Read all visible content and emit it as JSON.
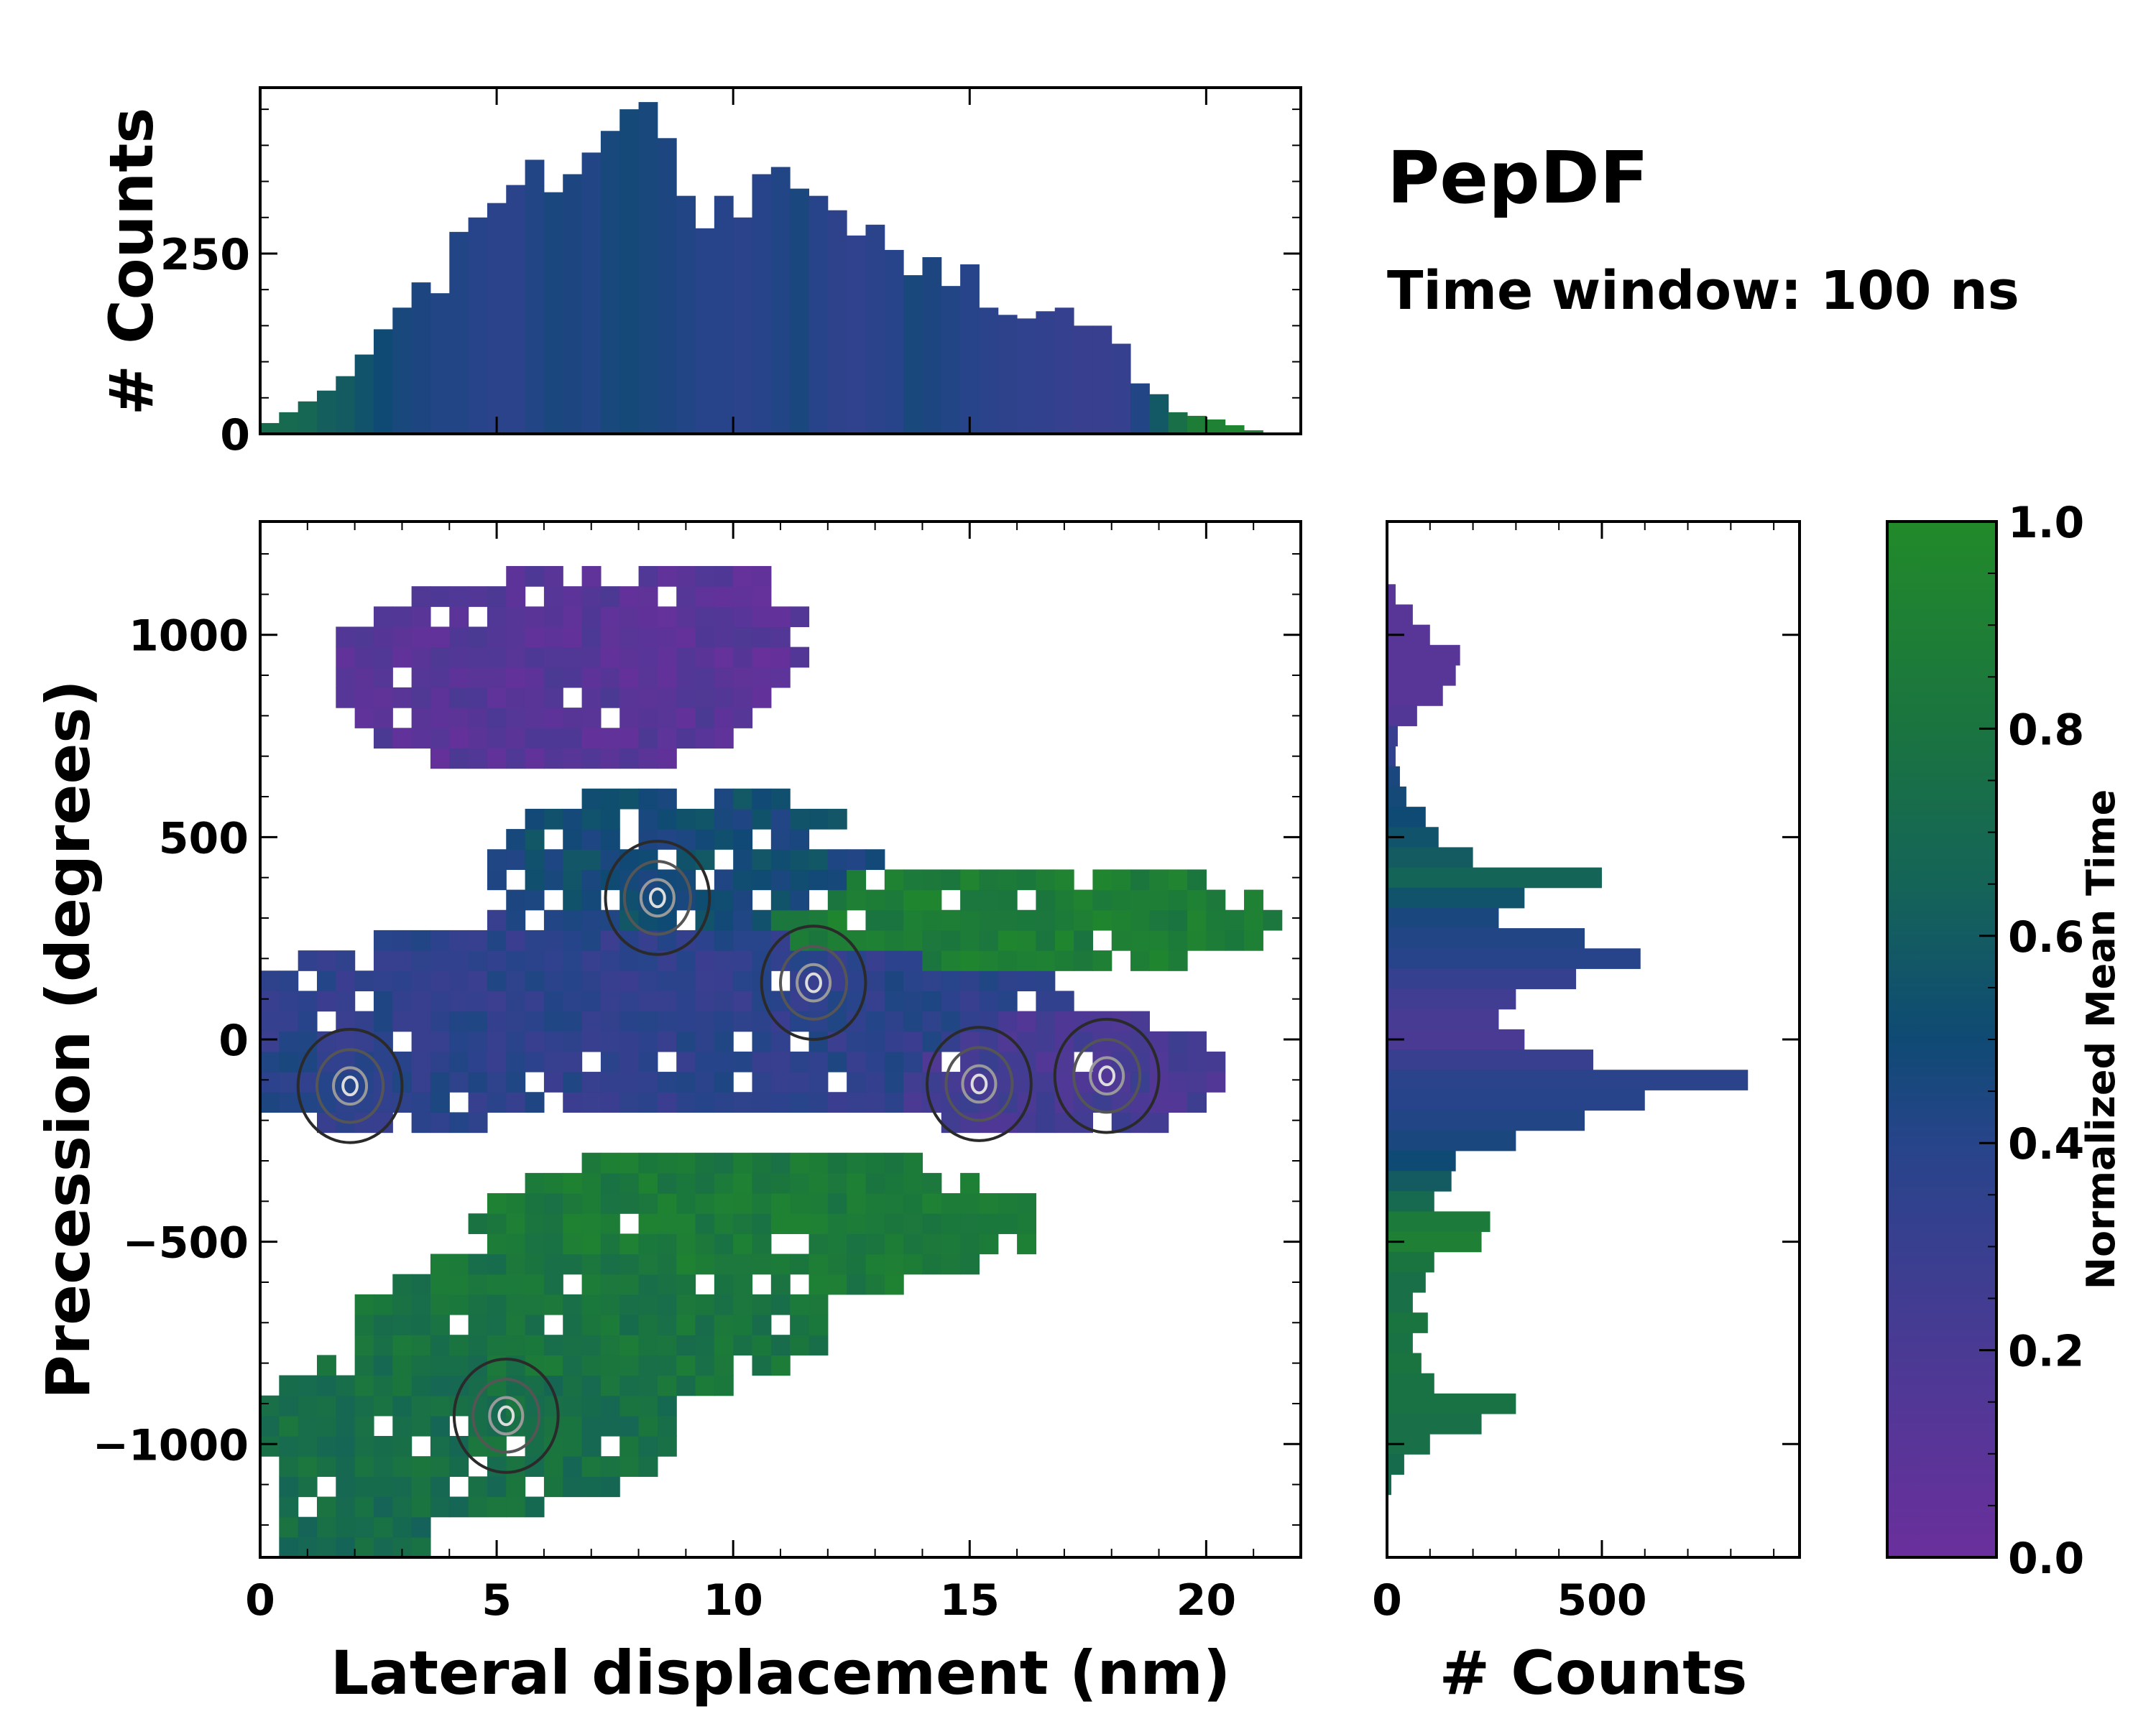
{
  "figure": {
    "title": "PepDF",
    "subtitle": "Time window: 100 ns"
  },
  "colormap": {
    "label": "Normalized Mean Time",
    "ticks": [
      "0.0",
      "0.2",
      "0.4",
      "0.6",
      "0.8",
      "1.0"
    ],
    "stops": [
      {
        "t": 0.0,
        "color": "#6a2f9c"
      },
      {
        "t": 0.2,
        "color": "#4a3a94"
      },
      {
        "t": 0.4,
        "color": "#27448a"
      },
      {
        "t": 0.5,
        "color": "#0f4a74"
      },
      {
        "t": 0.65,
        "color": "#156458"
      },
      {
        "t": 0.8,
        "color": "#1a7440"
      },
      {
        "t": 1.0,
        "color": "#228a2a"
      }
    ]
  },
  "chart_data": [
    {
      "id": "top-histogram",
      "type": "bar",
      "title": "",
      "xlabel": "",
      "ylabel": "# Counts",
      "xlim": [
        0,
        22
      ],
      "ylim": [
        0,
        480
      ],
      "yticks": [
        0,
        250
      ],
      "x": [
        0.2,
        0.6,
        1.0,
        1.4,
        1.8,
        2.2,
        2.6,
        3.0,
        3.4,
        3.8,
        4.2,
        4.6,
        5.0,
        5.4,
        5.8,
        6.2,
        6.6,
        7.0,
        7.4,
        7.8,
        8.2,
        8.6,
        9.0,
        9.4,
        9.8,
        10.2,
        10.6,
        11.0,
        11.4,
        11.8,
        12.2,
        12.6,
        13.0,
        13.4,
        13.8,
        14.2,
        14.6,
        15.0,
        15.4,
        15.8,
        16.2,
        16.6,
        17.0,
        17.4,
        17.8,
        18.2,
        18.6,
        19.0,
        19.4,
        19.8,
        20.2,
        20.6,
        21.0,
        21.4
      ],
      "values": [
        15,
        30,
        45,
        60,
        80,
        110,
        145,
        175,
        210,
        195,
        280,
        300,
        320,
        345,
        380,
        335,
        360,
        390,
        420,
        450,
        460,
        410,
        330,
        285,
        330,
        300,
        360,
        370,
        340,
        330,
        310,
        275,
        290,
        255,
        220,
        245,
        205,
        235,
        175,
        165,
        160,
        170,
        175,
        150,
        150,
        125,
        70,
        55,
        30,
        25,
        20,
        12,
        5,
        0
      ],
      "colors": [
        0.72,
        0.7,
        0.68,
        0.62,
        0.6,
        0.55,
        0.5,
        0.46,
        0.44,
        0.42,
        0.42,
        0.4,
        0.38,
        0.38,
        0.42,
        0.45,
        0.44,
        0.42,
        0.46,
        0.48,
        0.46,
        0.44,
        0.42,
        0.4,
        0.4,
        0.38,
        0.4,
        0.42,
        0.45,
        0.4,
        0.36,
        0.35,
        0.38,
        0.4,
        0.46,
        0.44,
        0.42,
        0.4,
        0.38,
        0.36,
        0.35,
        0.34,
        0.32,
        0.3,
        0.3,
        0.32,
        0.42,
        0.58,
        0.75,
        0.88,
        0.92,
        0.95,
        0.9,
        0.9
      ]
    },
    {
      "id": "main-map",
      "type": "heatmap",
      "title": "",
      "xlabel": "Lateral displacement (nm)",
      "ylabel": "Precession (degrees)",
      "xlim": [
        0,
        22
      ],
      "ylim": [
        -1280,
        1280
      ],
      "xticks": [
        0,
        5,
        10,
        15,
        20
      ],
      "yticks": [
        -1000,
        -500,
        0,
        500,
        1000
      ],
      "ytick_labels": [
        "−1000",
        "−500",
        "0",
        "500",
        "1000"
      ],
      "regions": [
        {
          "name": "upper purple lobe",
          "x": [
            1.4,
            11.6
          ],
          "y": [
            620,
            1180
          ],
          "mean_time": 0.12
        },
        {
          "name": "central blue band",
          "x": [
            0,
            20.5
          ],
          "y": [
            -350,
            600
          ],
          "mean_time": 0.38
        },
        {
          "name": "right green arm",
          "x": [
            10,
            21.8
          ],
          "y": [
            180,
            500
          ],
          "mean_time": 0.92
        },
        {
          "name": "lower green lobe",
          "x": [
            0,
            17
          ],
          "y": [
            -1280,
            -380
          ],
          "mean_time": 0.8
        }
      ],
      "contour_peaks": [
        {
          "x": 8.4,
          "y": 350
        },
        {
          "x": 11.7,
          "y": 140
        },
        {
          "x": 15.2,
          "y": -110
        },
        {
          "x": 17.9,
          "y": -90
        },
        {
          "x": 1.9,
          "y": -115
        },
        {
          "x": 5.2,
          "y": -930
        }
      ]
    },
    {
      "id": "right-histogram",
      "type": "bar",
      "orientation": "horizontal",
      "title": "",
      "xlabel": "# Counts",
      "ylabel": "",
      "xlim": [
        0,
        960
      ],
      "ylim": [
        -1280,
        1280
      ],
      "xticks": [
        0,
        500
      ],
      "y": [
        1100,
        1050,
        1000,
        950,
        900,
        850,
        800,
        750,
        700,
        650,
        600,
        550,
        500,
        450,
        400,
        350,
        300,
        250,
        200,
        150,
        100,
        50,
        0,
        -50,
        -100,
        -150,
        -200,
        -250,
        -300,
        -350,
        -400,
        -450,
        -500,
        -550,
        -600,
        -650,
        -700,
        -750,
        -800,
        -850,
        -900,
        -950,
        -1000,
        -1050,
        -1100
      ],
      "values": [
        20,
        60,
        100,
        170,
        160,
        130,
        70,
        25,
        20,
        30,
        45,
        90,
        120,
        200,
        500,
        320,
        260,
        460,
        590,
        440,
        300,
        260,
        320,
        480,
        840,
        600,
        460,
        300,
        160,
        150,
        110,
        240,
        220,
        110,
        90,
        60,
        95,
        60,
        80,
        110,
        300,
        220,
        100,
        40,
        10
      ],
      "colors": [
        0.12,
        0.12,
        0.12,
        0.12,
        0.12,
        0.12,
        0.15,
        0.3,
        0.35,
        0.45,
        0.48,
        0.5,
        0.55,
        0.6,
        0.65,
        0.55,
        0.45,
        0.42,
        0.4,
        0.32,
        0.25,
        0.22,
        0.2,
        0.3,
        0.38,
        0.4,
        0.42,
        0.45,
        0.5,
        0.6,
        0.7,
        0.85,
        0.9,
        0.8,
        0.75,
        0.75,
        0.8,
        0.78,
        0.8,
        0.78,
        0.78,
        0.75,
        0.75,
        0.72,
        0.7
      ]
    }
  ]
}
